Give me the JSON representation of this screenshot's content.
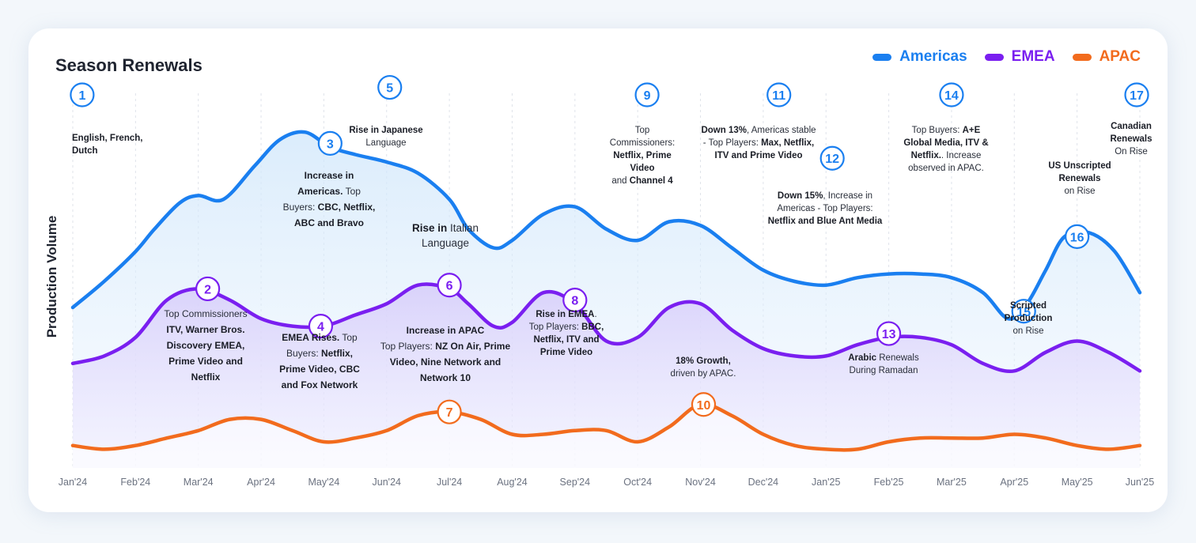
{
  "chart_data": {
    "type": "line",
    "title": "Season Renewals",
    "ylabel": "Production Volume",
    "xlabel": "",
    "categories": [
      "Jan'24",
      "Feb'24",
      "Mar'24",
      "Apr'24",
      "May'24",
      "Jun'24",
      "Jul'24",
      "Aug'24",
      "Sep'24",
      "Oct'24",
      "Nov'24",
      "Dec'24",
      "Jan'25",
      "Feb'25",
      "Mar'25",
      "Apr'25",
      "May'25",
      "Jun'25"
    ],
    "ylim": [
      0,
      100
    ],
    "grid": "vertical dashed",
    "legend": "top-right",
    "series": [
      {
        "name": "Americas",
        "color": "#1a7ff0",
        "x": [
          0,
          0.5,
          1,
          1.3,
          1.7,
          2,
          2.4,
          2.9,
          3.3,
          3.7,
          4.1,
          4.5,
          5,
          5.5,
          6,
          6.3,
          6.7,
          7,
          7.5,
          8,
          8.5,
          9,
          9.5,
          10,
          10.5,
          11,
          11.5,
          12,
          12.5,
          13,
          13.5,
          14,
          14.5,
          14.9,
          15.2,
          15.5,
          15.8,
          16.2,
          16.6,
          17
        ],
        "values": [
          43,
          50,
          58,
          64,
          71,
          73,
          72,
          81,
          88,
          90,
          86,
          84,
          82,
          79,
          72,
          64,
          59,
          61,
          68,
          70,
          64,
          61,
          66,
          65,
          59,
          53,
          50,
          49,
          51,
          52,
          52,
          51,
          47,
          40,
          44,
          53,
          62,
          63,
          58,
          47
        ]
      },
      {
        "name": "EMEA",
        "color": "#7a1ff0",
        "x": [
          0,
          0.5,
          1,
          1.5,
          2,
          2.5,
          3,
          3.5,
          4,
          4.5,
          5,
          5.5,
          6,
          6.3,
          6.7,
          7,
          7.5,
          8,
          8.5,
          9,
          9.5,
          10,
          10.5,
          11,
          11.5,
          12,
          12.5,
          13,
          13.5,
          14,
          14.5,
          15,
          15.5,
          16,
          16.5,
          17
        ],
        "values": [
          28,
          30,
          35,
          45,
          48,
          45,
          40,
          38,
          38,
          41,
          44,
          49,
          48,
          44,
          38,
          39,
          47,
          44,
          34,
          35,
          43,
          44,
          37,
          32,
          30,
          30,
          33,
          35,
          35,
          33,
          28,
          26,
          31,
          34,
          31,
          26
        ]
      },
      {
        "name": "APAC",
        "color": "#f26b1d",
        "x": [
          0,
          0.5,
          1,
          1.5,
          2,
          2.5,
          3,
          3.5,
          4,
          4.5,
          5,
          5.5,
          6,
          6.5,
          7,
          7.5,
          8,
          8.5,
          9,
          9.5,
          10,
          10.5,
          11,
          11.5,
          12,
          12.5,
          13,
          13.5,
          14,
          14.5,
          15,
          15.5,
          16,
          16.5,
          17
        ],
        "values": [
          6,
          5,
          6,
          8,
          10,
          13,
          13,
          10,
          7,
          8,
          10,
          14,
          15,
          13,
          9,
          9,
          10,
          10,
          7,
          11,
          17,
          14,
          9,
          6,
          5,
          5,
          7,
          8,
          8,
          8,
          9,
          8,
          6,
          5,
          6
        ]
      }
    ],
    "markers": [
      {
        "num": "1",
        "x": 0.15,
        "y": 100,
        "series": "Americas"
      },
      {
        "num": "2",
        "x": 2.15,
        "y": 48,
        "series": "EMEA"
      },
      {
        "num": "3",
        "x": 4.1,
        "y": 87,
        "series": "Americas"
      },
      {
        "num": "4",
        "x": 3.95,
        "y": 38,
        "series": "EMEA"
      },
      {
        "num": "5",
        "x": 5.05,
        "y": 102,
        "series": "Americas"
      },
      {
        "num": "6",
        "x": 6.0,
        "y": 49,
        "series": "EMEA"
      },
      {
        "num": "7",
        "x": 6.0,
        "y": 15,
        "series": "APAC"
      },
      {
        "num": "8",
        "x": 8.0,
        "y": 45,
        "series": "EMEA"
      },
      {
        "num": "9",
        "x": 9.15,
        "y": 100,
        "series": "Americas"
      },
      {
        "num": "10",
        "x": 10.05,
        "y": 17,
        "series": "APAC"
      },
      {
        "num": "11",
        "x": 11.25,
        "y": 100,
        "series": "Americas"
      },
      {
        "num": "12",
        "x": 12.1,
        "y": 83,
        "series": "Americas"
      },
      {
        "num": "13",
        "x": 13.0,
        "y": 36,
        "series": "EMEA"
      },
      {
        "num": "14",
        "x": 14.0,
        "y": 100,
        "series": "Americas"
      },
      {
        "num": "15",
        "x": 15.15,
        "y": 42,
        "series": "Americas"
      },
      {
        "num": "16",
        "x": 16.0,
        "y": 62,
        "series": "Americas"
      },
      {
        "num": "17",
        "x": 16.95,
        "y": 100,
        "series": "Americas"
      }
    ]
  },
  "annotations": [
    {
      "id": "a1",
      "lines": [
        [
          "",
          "English, French,"
        ],
        [
          "",
          "Dutch"
        ]
      ],
      "bold_all": true
    },
    {
      "id": "a2",
      "lines": [
        [
          "Top Commissioners",
          ""
        ],
        [
          "",
          "ITV, Warner Bros."
        ],
        [
          "",
          "Discovery EMEA,"
        ],
        [
          "",
          "Prime Video and"
        ],
        [
          "",
          "Netflix"
        ]
      ]
    },
    {
      "id": "a3",
      "lines": [
        [
          "",
          "Increase in"
        ],
        [
          "",
          "Americas.",
          "Top"
        ],
        [
          "Buyers: ",
          "CBC, Netflix,"
        ],
        [
          "",
          "ABC and Bravo"
        ]
      ]
    },
    {
      "id": "a4",
      "lines": [
        [
          "",
          "EMEA Rises.",
          "Top"
        ],
        [
          "Buyers: ",
          "Netflix,"
        ],
        [
          "",
          "Prime Video, CBC"
        ],
        [
          "",
          "and Fox Network"
        ]
      ]
    },
    {
      "id": "a5",
      "lines": [
        [
          "",
          "Rise in Japanese"
        ],
        [
          "Language",
          ""
        ]
      ]
    },
    {
      "id": "a6",
      "lines": [
        [
          "",
          "Rise in",
          "Italian"
        ],
        [
          "Language",
          ""
        ]
      ]
    },
    {
      "id": "a7",
      "lines": [
        [
          "",
          "Increase in APAC"
        ],
        [
          "Top Players: ",
          "NZ On Air, Prime"
        ],
        [
          "",
          "Video, Nine Network and"
        ],
        [
          "",
          "Network 10"
        ]
      ]
    },
    {
      "id": "a8",
      "lines": [
        [
          "",
          "Rise in EMEA",
          ". "
        ],
        [
          "Top Players: ",
          "BBC,"
        ],
        [
          "",
          "Netflix, ITV and"
        ],
        [
          "",
          "Prime Video"
        ]
      ]
    },
    {
      "id": "a9",
      "lines": [
        [
          "Top",
          ""
        ],
        [
          "Commissioners:",
          ""
        ],
        [
          "",
          "Netflix, Prime"
        ],
        [
          "",
          "Video"
        ],
        [
          "and ",
          "Channel 4"
        ]
      ]
    },
    {
      "id": "a10",
      "lines": [
        [
          "",
          "18% Growth,"
        ],
        [
          "driven by APAC.",
          ""
        ]
      ]
    },
    {
      "id": "a11",
      "lines": [
        [
          "",
          "Down 13%",
          ", Americas stable"
        ],
        [
          " -  Top Players: ",
          "Max, Netflix,"
        ],
        [
          "",
          "ITV and Prime Video"
        ]
      ]
    },
    {
      "id": "a12",
      "lines": [
        [
          "",
          "Down 15%",
          ", Increase in"
        ],
        [
          "Americas - Top Players:",
          ""
        ],
        [
          "",
          "Netflix and Blue Ant Media"
        ]
      ]
    },
    {
      "id": "a13",
      "lines": [
        [
          "",
          "Arabic",
          " Renewals"
        ],
        [
          "During Ramadan",
          ""
        ]
      ]
    },
    {
      "id": "a14",
      "lines": [
        [
          "Top Buyers: ",
          "A+E"
        ],
        [
          "",
          "Global Media, ITV &"
        ],
        [
          "",
          "Netflix.",
          ". Increase"
        ],
        [
          "observed in APAC.",
          ""
        ]
      ]
    },
    {
      "id": "a15",
      "lines": [
        [
          "",
          "Scripted"
        ],
        [
          "",
          "Production"
        ],
        [
          "on Rise",
          ""
        ]
      ]
    },
    {
      "id": "a16",
      "lines": [
        [
          "",
          "US Unscripted"
        ],
        [
          "",
          "Renewals"
        ],
        [
          "on Rise",
          ""
        ]
      ]
    },
    {
      "id": "a17",
      "lines": [
        [
          "",
          "Canadian"
        ],
        [
          "",
          "Renewals"
        ],
        [
          "On Rise",
          ""
        ]
      ]
    }
  ]
}
